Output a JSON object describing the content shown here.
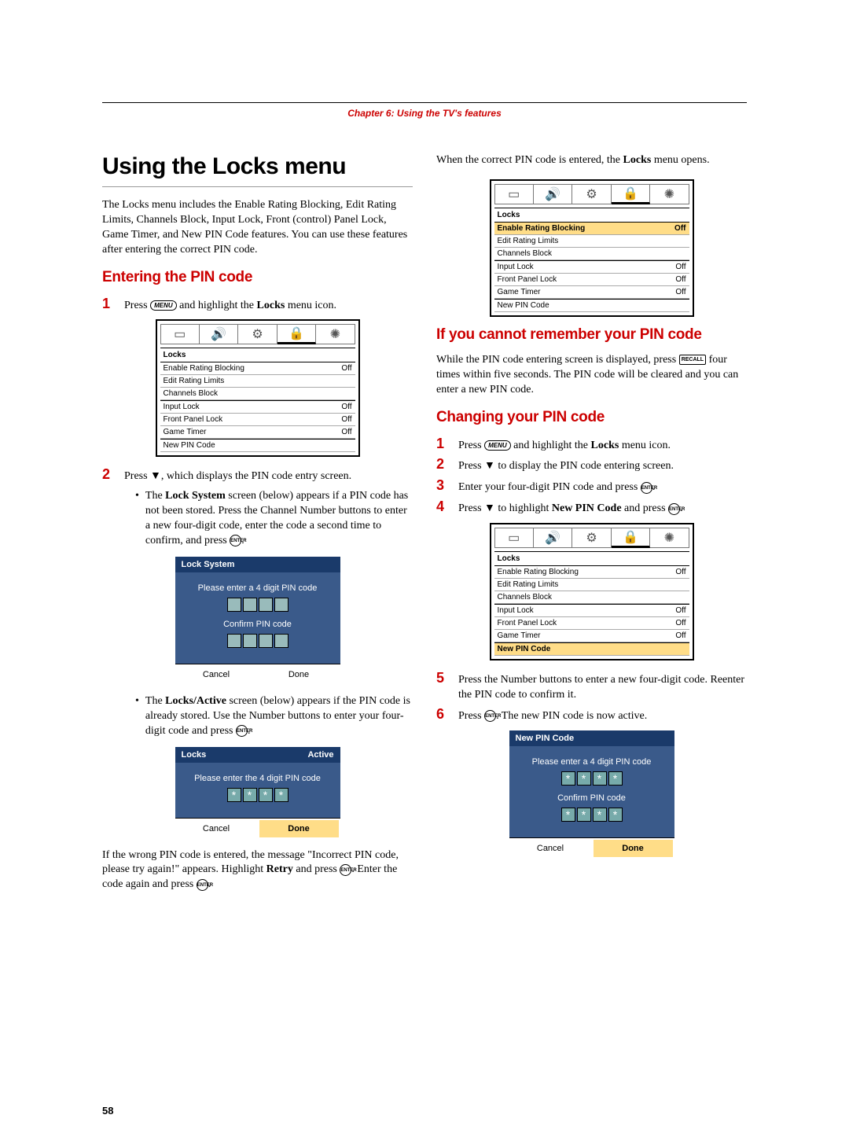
{
  "chapter": "Chapter 6: Using the TV's features",
  "h1": "Using the Locks menu",
  "intro": "The Locks menu includes the Enable Rating Blocking, Edit Rating Limits, Channels Block, Input Lock, Front (control) Panel Lock, Game Timer, and New PIN Code features. You can use these features after entering the correct PIN code.",
  "sub_enter": "Entering the PIN code",
  "step_l1_a": "Press ",
  "step_l1_b": " and highlight the ",
  "step_l1_c": " menu icon.",
  "locks_word": "Locks",
  "menu_key": "MENU",
  "enter_key": "ENTER",
  "recall_key": "RECALL",
  "step_l2": "Press ▼, which displays the PIN code entry screen.",
  "bullet1_a": "The ",
  "bullet1_b": "Lock System",
  "bullet1_c": " screen (below) appears if a PIN code has not been stored. Press the Channel Number buttons to enter a new four-digit code, enter the code a second time to confirm, and press ",
  "bullet2_a": "The ",
  "bullet2_b": "Locks/Active",
  "bullet2_c": " screen (below) appears if the PIN code is already stored. Use the Number buttons to enter your four-digit code and press ",
  "wrong_a": "If the wrong PIN code is entered, the message \"Incorrect PIN code, please try again!\" appears. Highlight ",
  "wrong_b": "Retry",
  "wrong_c": " and press ",
  "wrong_d": ". Enter the code again and press ",
  "right_col_top_a": "When the correct PIN code is entered, the ",
  "right_col_top_b": " menu opens.",
  "sub_forget": "If you cannot remember your PIN code",
  "forget_a": "While the PIN code entering screen is displayed, press ",
  "forget_b": " four times within five seconds. The PIN code will be cleared and you can enter a new PIN code.",
  "sub_change": "Changing your PIN code",
  "c1_a": "Press ",
  "c1_b": " and highlight the ",
  "c1_c": " menu icon.",
  "c2": "Press ▼ to display the PIN code entering screen.",
  "c3_a": "Enter your four-digit PIN code and press ",
  "c4_a": "Press ▼ to highlight ",
  "c4_b": "New PIN Code",
  "c4_c": " and press ",
  "c5": "Press the Number buttons to enter a new four-digit code. Reenter the PIN code to confirm it.",
  "c6_a": "Press ",
  "c6_b": ". The new PIN code is now active.",
  "menu": {
    "title": "Locks",
    "rows": [
      {
        "label": "Enable Rating Blocking",
        "val": "Off"
      },
      {
        "label": "Edit Rating Limits",
        "val": ""
      },
      {
        "label": "Channels Block",
        "val": ""
      },
      {
        "label": "Input Lock",
        "val": "Off"
      },
      {
        "label": "Front Panel Lock",
        "val": "Off"
      },
      {
        "label": "Game Timer",
        "val": "Off"
      },
      {
        "label": "New PIN Code",
        "val": ""
      }
    ]
  },
  "dlg1": {
    "title": "Lock System",
    "msg1": "Please enter a 4 digit PIN code",
    "msg2": "Confirm PIN code",
    "cancel": "Cancel",
    "done": "Done"
  },
  "dlg2": {
    "title": "Locks",
    "status": "Active",
    "msg": "Please enter the 4 digit PIN code",
    "cancel": "Cancel",
    "done": "Done"
  },
  "dlg3": {
    "title": "New PIN Code",
    "msg1": "Please enter a 4 digit PIN code",
    "msg2": "Confirm PIN code",
    "cancel": "Cancel",
    "done": "Done"
  },
  "tabs": {
    "pic": "▭",
    "spk": "🔊",
    "set": "⚙",
    "lock": "🔒",
    "pref": "✺"
  },
  "page": "58",
  "period": "."
}
